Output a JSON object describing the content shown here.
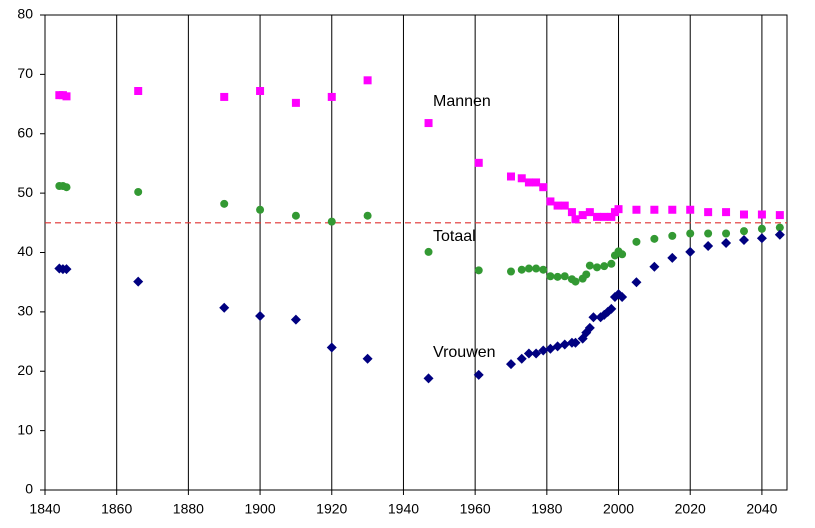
{
  "chart_data": {
    "type": "scatter",
    "xlim": [
      1840,
      2047
    ],
    "xticks": [
      1840,
      1860,
      1880,
      1900,
      1920,
      1940,
      1960,
      1980,
      2000,
      2020,
      2040
    ],
    "ylim": [
      0,
      80
    ],
    "yticks": [
      0,
      10,
      20,
      30,
      40,
      50,
      60,
      70,
      80
    ],
    "grid": "x",
    "reference_line": {
      "value": 45,
      "color": "#e03030",
      "style": "dashed"
    },
    "series": [
      {
        "name": "Mannen",
        "color": "#ff00ff",
        "marker": "square",
        "x": [
          1844,
          1845,
          1846,
          1866,
          1890,
          1900,
          1910,
          1920,
          1930,
          1947,
          1961,
          1970,
          1973,
          1975,
          1977,
          1979,
          1981,
          1983,
          1985,
          1987,
          1988,
          1990,
          1992,
          1994,
          1996,
          1998,
          1999,
          2000,
          2005,
          2010,
          2015,
          2020,
          2025,
          2030,
          2035,
          2040,
          2045
        ],
        "values": [
          66.5,
          66.5,
          66.3,
          67.2,
          66.2,
          67.2,
          65.2,
          66.2,
          69,
          61.8,
          55.1,
          52.8,
          52.5,
          51.8,
          51.8,
          51.0,
          48.6,
          47.9,
          47.9,
          46.8,
          45.6,
          46.3,
          46.8,
          46.0,
          46.0,
          46.0,
          46.8,
          47.3,
          47.2,
          47.2,
          47.2,
          47.2,
          46.8,
          46.8,
          46.4,
          46.4,
          46.3
        ]
      },
      {
        "name": "Totaal",
        "color": "#339933",
        "marker": "circle",
        "x": [
          1844,
          1845,
          1846,
          1866,
          1890,
          1900,
          1910,
          1920,
          1930,
          1947,
          1961,
          1970,
          1973,
          1975,
          1977,
          1979,
          1981,
          1983,
          1985,
          1987,
          1988,
          1990,
          1991,
          1992,
          1994,
          1996,
          1998,
          1999,
          2000,
          2001,
          2005,
          2010,
          2015,
          2020,
          2025,
          2030,
          2035,
          2040,
          2045
        ],
        "values": [
          51.2,
          51.2,
          51.0,
          50.2,
          48.2,
          47.2,
          46.2,
          45.2,
          46.2,
          40.1,
          37.0,
          36.8,
          37.1,
          37.3,
          37.3,
          37.1,
          36.0,
          35.9,
          36.0,
          35.5,
          35.1,
          35.6,
          36.3,
          37.8,
          37.5,
          37.7,
          38.1,
          39.5,
          40.2,
          39.7,
          41.8,
          42.3,
          42.8,
          43.2,
          43.2,
          43.2,
          43.6,
          44.0,
          44.2
        ]
      },
      {
        "name": "Vrouwen",
        "color": "#000080",
        "marker": "diamond",
        "x": [
          1844,
          1845,
          1846,
          1866,
          1890,
          1900,
          1910,
          1920,
          1930,
          1947,
          1961,
          1970,
          1973,
          1975,
          1977,
          1979,
          1981,
          1983,
          1985,
          1987,
          1988,
          1990,
          1991,
          1992,
          1993,
          1995,
          1996,
          1997,
          1998,
          1999,
          2000,
          2001,
          2005,
          2010,
          2015,
          2020,
          2025,
          2030,
          2035,
          2040,
          2045
        ],
        "values": [
          37.3,
          37.2,
          37.2,
          35.1,
          30.7,
          29.3,
          28.7,
          24.0,
          22.1,
          18.8,
          19.4,
          21.2,
          22.1,
          23.0,
          23.0,
          23.5,
          23.8,
          24.2,
          24.5,
          24.8,
          24.8,
          25.5,
          26.5,
          27.3,
          29.1,
          29.1,
          29.5,
          30.0,
          30.5,
          32.5,
          33.0,
          32.5,
          35.0,
          37.6,
          39.1,
          40.1,
          41.1,
          41.6,
          42.1,
          42.4,
          43.0
        ]
      }
    ]
  }
}
